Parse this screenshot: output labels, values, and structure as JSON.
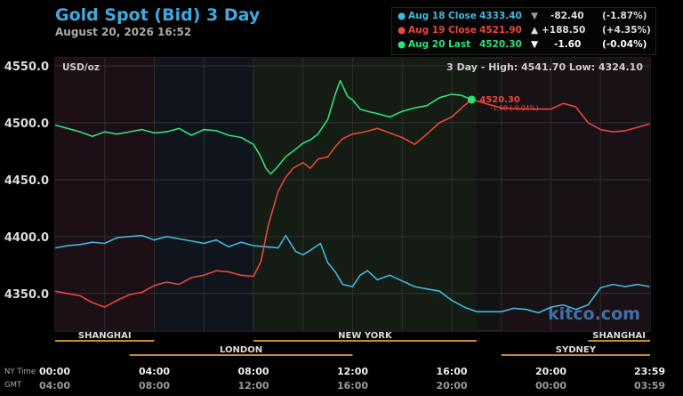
{
  "header": {
    "title": "Gold Spot (Bid) 3 Day",
    "timestamp": "August 20, 2026 16:52"
  },
  "legend": [
    {
      "label": "Aug 18 Close",
      "value": "4333.40",
      "arrow": "▼",
      "change": "-82.40",
      "pct": "(-1.87%)",
      "color": "#3fb8e0"
    },
    {
      "label": "Aug 19 Close",
      "value": "4521.90",
      "arrow": "▲",
      "change": "+188.50",
      "pct": "(+4.35%)",
      "color": "#e8463a"
    },
    {
      "label": "Aug 20 Last",
      "value": "4520.30",
      "arrow": "▼",
      "change": "-1.60",
      "pct": "(-0.04%)",
      "color": "#2ee07a"
    }
  ],
  "chart_data": {
    "type": "line",
    "unit_label": "USD/oz",
    "stats": "3 Day - High: 4541.70  Low: 4324.10",
    "ylim": [
      4317,
      4557
    ],
    "y_ticks": [
      "4550.0",
      "4500.0",
      "4450.0",
      "4400.0",
      "4350.0"
    ],
    "y_tick_values": [
      4550,
      4500,
      4450,
      4400,
      4350
    ],
    "x_ticks_ny": [
      "00:00",
      "04:00",
      "08:00",
      "12:00",
      "16:00",
      "20:00",
      "23:59"
    ],
    "x_ticks_gmt": [
      "04:00",
      "08:00",
      "12:00",
      "16:00",
      "20:00",
      "00:00",
      "03:59"
    ],
    "x_ticks_hours": [
      0,
      4,
      8,
      12,
      16,
      20,
      23.98
    ],
    "axis_row_labels": [
      "NY Time",
      "GMT"
    ],
    "sessions": [
      {
        "name": "SHANGHAI",
        "start": 0,
        "end": 4
      },
      {
        "name": "NEW YORK",
        "start": 8,
        "end": 17
      },
      {
        "name": "SHANGHAI",
        "start": 21.5,
        "end": 24
      },
      {
        "name": "LONDON",
        "start": 3,
        "end": 12
      },
      {
        "name": "SYDNEY",
        "start": 18,
        "end": 24
      }
    ],
    "last_label": "4520.30",
    "last_change": "-1.60 (-0.04%)",
    "last_point": [
      16.8,
      4520.3
    ],
    "watermark": "kitco.com",
    "series": [
      {
        "name": "Aug 18 Close",
        "color": "#3fb8e0",
        "points": [
          [
            0,
            4390
          ],
          [
            0.5,
            4392
          ],
          [
            1,
            4393
          ],
          [
            1.5,
            4395
          ],
          [
            2,
            4394
          ],
          [
            2.5,
            4399
          ],
          [
            3,
            4400
          ],
          [
            3.5,
            4401
          ],
          [
            4,
            4397
          ],
          [
            4.5,
            4400
          ],
          [
            5,
            4398
          ],
          [
            5.5,
            4396
          ],
          [
            6,
            4394
          ],
          [
            6.5,
            4397
          ],
          [
            7,
            4391
          ],
          [
            7.5,
            4395
          ],
          [
            8,
            4392
          ],
          [
            8.5,
            4391
          ],
          [
            9,
            4390
          ],
          [
            9.3,
            4401
          ],
          [
            9.7,
            4387
          ],
          [
            10,
            4384
          ],
          [
            10.3,
            4388
          ],
          [
            10.7,
            4394
          ],
          [
            11,
            4377
          ],
          [
            11.3,
            4369
          ],
          [
            11.6,
            4358
          ],
          [
            12,
            4356
          ],
          [
            12.3,
            4366
          ],
          [
            12.6,
            4370
          ],
          [
            13,
            4362
          ],
          [
            13.5,
            4366
          ],
          [
            14,
            4361
          ],
          [
            14.5,
            4356
          ],
          [
            15,
            4354
          ],
          [
            15.5,
            4352
          ],
          [
            16,
            4344
          ],
          [
            16.5,
            4338
          ],
          [
            17,
            4334
          ],
          [
            18,
            4334
          ],
          [
            18.5,
            4337
          ],
          [
            19,
            4336
          ],
          [
            19.5,
            4333
          ],
          [
            20,
            4338
          ],
          [
            20.5,
            4340
          ],
          [
            21,
            4336
          ],
          [
            21.5,
            4340
          ],
          [
            22,
            4355
          ],
          [
            22.5,
            4358
          ],
          [
            23,
            4356
          ],
          [
            23.5,
            4358
          ],
          [
            23.98,
            4356
          ]
        ]
      },
      {
        "name": "Aug 19 Close",
        "color": "#e8463a",
        "points": [
          [
            0,
            4352
          ],
          [
            0.5,
            4350
          ],
          [
            1,
            4348
          ],
          [
            1.5,
            4342
          ],
          [
            2,
            4338
          ],
          [
            2.5,
            4344
          ],
          [
            3,
            4349
          ],
          [
            3.5,
            4351
          ],
          [
            4,
            4357
          ],
          [
            4.5,
            4360
          ],
          [
            5,
            4358
          ],
          [
            5.5,
            4364
          ],
          [
            6,
            4366
          ],
          [
            6.5,
            4370
          ],
          [
            7,
            4369
          ],
          [
            7.5,
            4366
          ],
          [
            8,
            4365
          ],
          [
            8.3,
            4378
          ],
          [
            8.6,
            4410
          ],
          [
            9,
            4440
          ],
          [
            9.3,
            4452
          ],
          [
            9.6,
            4460
          ],
          [
            10,
            4465
          ],
          [
            10.3,
            4460
          ],
          [
            10.6,
            4468
          ],
          [
            11,
            4470
          ],
          [
            11.3,
            4479
          ],
          [
            11.6,
            4486
          ],
          [
            12,
            4490
          ],
          [
            12.5,
            4492
          ],
          [
            13,
            4495
          ],
          [
            13.5,
            4491
          ],
          [
            14,
            4487
          ],
          [
            14.5,
            4481
          ],
          [
            15,
            4490
          ],
          [
            15.5,
            4500
          ],
          [
            16,
            4505
          ],
          [
            16.5,
            4515
          ],
          [
            16.8,
            4520.3
          ],
          [
            18,
            4513
          ],
          [
            19,
            4512
          ],
          [
            20,
            4512
          ],
          [
            20.5,
            4517
          ],
          [
            21,
            4514
          ],
          [
            21.5,
            4500
          ],
          [
            22,
            4494
          ],
          [
            22.5,
            4492
          ],
          [
            23,
            4493
          ],
          [
            23.5,
            4496
          ],
          [
            23.98,
            4499
          ]
        ]
      },
      {
        "name": "Aug 20 Last",
        "color": "#2ee07a",
        "points": [
          [
            0,
            4498
          ],
          [
            0.5,
            4495
          ],
          [
            1,
            4492
          ],
          [
            1.5,
            4488
          ],
          [
            2,
            4492
          ],
          [
            2.5,
            4490
          ],
          [
            3,
            4492
          ],
          [
            3.5,
            4494
          ],
          [
            4,
            4491
          ],
          [
            4.5,
            4492
          ],
          [
            5,
            4495
          ],
          [
            5.5,
            4489
          ],
          [
            6,
            4494
          ],
          [
            6.5,
            4493
          ],
          [
            7,
            4489
          ],
          [
            7.5,
            4487
          ],
          [
            8,
            4481
          ],
          [
            8.3,
            4470
          ],
          [
            8.5,
            4460
          ],
          [
            8.7,
            4455
          ],
          [
            9,
            4462
          ],
          [
            9.3,
            4470
          ],
          [
            9.6,
            4475
          ],
          [
            10,
            4482
          ],
          [
            10.3,
            4485
          ],
          [
            10.6,
            4490
          ],
          [
            11,
            4503
          ],
          [
            11.3,
            4525
          ],
          [
            11.5,
            4537
          ],
          [
            11.8,
            4523
          ],
          [
            12,
            4520
          ],
          [
            12.3,
            4512
          ],
          [
            12.6,
            4510
          ],
          [
            13,
            4508
          ],
          [
            13.5,
            4505
          ],
          [
            14,
            4510
          ],
          [
            14.5,
            4513
          ],
          [
            15,
            4515
          ],
          [
            15.5,
            4522
          ],
          [
            16,
            4525
          ],
          [
            16.4,
            4524
          ],
          [
            16.8,
            4520.3
          ]
        ]
      }
    ]
  }
}
